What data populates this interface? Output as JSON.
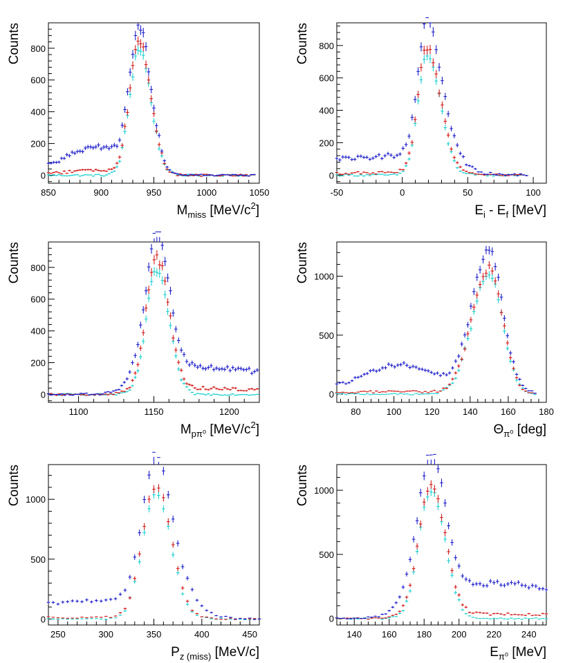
{
  "colors": {
    "series_blue": "#1b1bc9",
    "series_red": "#d21a1a",
    "series_cyan": "#1fd0d0",
    "axis": "#000000"
  },
  "legend": {
    "series_names": [
      "blue",
      "red",
      "cyan"
    ]
  },
  "chart_data": [
    {
      "type": "scatter",
      "ylabel": "Counts",
      "xlabel_text": "M",
      "xlabel_sub": "miss",
      "xlabel_unit": " [MeV/c",
      "xlabel_sup": "2",
      "xlabel_end": "]",
      "xlim": [
        850,
        1050
      ],
      "ylim": [
        -50,
        960
      ],
      "xticks": [
        850,
        900,
        950,
        1000,
        1050
      ],
      "yticks": [
        0,
        200,
        400,
        600,
        800
      ],
      "shape": {
        "peak": 936,
        "amp": 860,
        "sigma_l": 9,
        "sigma_r": 11,
        "bg_type": "left_shoulder",
        "bg_amp": 175,
        "bg_center": 895,
        "bg_sigma": 25,
        "xmin": 850,
        "xmax": 1045,
        "step": 2.5
      },
      "series": [
        {
          "name": "blue",
          "scale": 1.0,
          "bg_scale": 1.0
        },
        {
          "name": "red",
          "scale": 0.97,
          "bg_scale": 0.18
        },
        {
          "name": "cyan",
          "scale": 0.93,
          "bg_scale": 0.0
        }
      ]
    },
    {
      "type": "scatter",
      "ylabel": "Counts",
      "xlabel_text": "E",
      "xlabel_sub": "i",
      "xlabel_unit": " - E",
      "xlabel_sub2": "f",
      "xlabel_end": " [MeV]",
      "xlim": [
        -50,
        110
      ],
      "ylim": [
        -50,
        940
      ],
      "xticks": [
        -50,
        0,
        50,
        100
      ],
      "yticks": [
        0,
        200,
        400,
        600,
        800
      ],
      "shape": {
        "peak": 19,
        "amp": 820,
        "sigma_l": 7,
        "sigma_r": 10,
        "bg_type": "left_flat",
        "bg_amp": 120,
        "bg_center": -50,
        "bg_sigma": 60,
        "xmin": -50,
        "xmax": 95,
        "step": 2.3
      },
      "series": [
        {
          "name": "blue",
          "scale": 1.0,
          "bg_scale": 1.0
        },
        {
          "name": "red",
          "scale": 0.95,
          "bg_scale": 0.12
        },
        {
          "name": "cyan",
          "scale": 0.9,
          "bg_scale": 0.0
        }
      ]
    },
    {
      "type": "scatter",
      "ylabel": "Counts",
      "xlabel_text": "M",
      "xlabel_sub": "pπ⁰",
      "xlabel_unit": " [MeV/c",
      "xlabel_sup": "2",
      "xlabel_end": "]",
      "xlim": [
        1080,
        1220
      ],
      "ylim": [
        -50,
        960
      ],
      "xticks": [
        1100,
        1150,
        1200
      ],
      "yticks": [
        0,
        200,
        400,
        600,
        800
      ],
      "shape": {
        "peak": 1152,
        "amp": 870,
        "sigma_l": 7,
        "sigma_r": 8,
        "bg_type": "right_tail",
        "bg_amp": 150,
        "bg_center": 1170,
        "bg_sigma": 40,
        "xmin": 1080,
        "xmax": 1220,
        "step": 1.8
      },
      "series": [
        {
          "name": "blue",
          "scale": 1.0,
          "bg_scale": 1.0
        },
        {
          "name": "red",
          "scale": 0.95,
          "bg_scale": 0.22
        },
        {
          "name": "cyan",
          "scale": 0.9,
          "bg_scale": 0.0
        }
      ]
    },
    {
      "type": "scatter",
      "ylabel": "Counts",
      "xlabel_text": "Θ",
      "xlabel_sub": "π⁰",
      "xlabel_unit": " [deg]",
      "xlim": [
        70,
        180
      ],
      "ylim": [
        -70,
        1290
      ],
      "xticks": [
        80,
        100,
        120,
        140,
        160,
        180
      ],
      "yticks": [
        0,
        500,
        1000
      ],
      "shape": {
        "peak": 150,
        "amp": 1180,
        "sigma_l": 9,
        "sigma_r": 7,
        "bg_type": "left_bump",
        "bg_amp": 250,
        "bg_center": 103,
        "bg_sigma": 18,
        "xmin": 70,
        "xmax": 175,
        "step": 1.6
      },
      "series": [
        {
          "name": "blue",
          "scale": 1.0,
          "bg_scale": 1.0
        },
        {
          "name": "red",
          "scale": 0.9,
          "bg_scale": 0.1
        },
        {
          "name": "cyan",
          "scale": 0.86,
          "bg_scale": 0.0
        }
      ]
    },
    {
      "type": "scatter",
      "ylabel": "Counts",
      "xlabel_text": "P",
      "xlabel_sub": "z (miss)",
      "xlabel_unit": " [MeV/c]",
      "xlim": [
        240,
        460
      ],
      "ylim": [
        -50,
        1290
      ],
      "xticks": [
        250,
        300,
        350,
        400,
        450
      ],
      "yticks": [
        0,
        500,
        1000
      ],
      "shape": {
        "peak": 352,
        "amp": 1190,
        "sigma_l": 14,
        "sigma_r": 16,
        "bg_type": "left_flat",
        "bg_amp": 160,
        "bg_center": 290,
        "bg_sigma": 45,
        "xmin": 240,
        "xmax": 460,
        "step": 5
      },
      "series": [
        {
          "name": "blue",
          "scale": 1.0,
          "bg_scale": 1.0
        },
        {
          "name": "red",
          "scale": 0.92,
          "bg_scale": 0.1
        },
        {
          "name": "cyan",
          "scale": 0.88,
          "bg_scale": 0.0
        }
      ]
    },
    {
      "type": "scatter",
      "ylabel": "Counts",
      "xlabel_text": "E",
      "xlabel_sub": "π⁰",
      "xlabel_unit": " [MeV]",
      "xlim": [
        130,
        250
      ],
      "ylim": [
        -50,
        1200
      ],
      "xticks": [
        140,
        160,
        180,
        200,
        220,
        240
      ],
      "yticks": [
        0,
        500,
        1000
      ],
      "shape": {
        "peak": 184,
        "amp": 1080,
        "sigma_l": 7,
        "sigma_r": 8,
        "bg_type": "right_tail",
        "bg_amp": 240,
        "bg_center": 222,
        "bg_sigma": 25,
        "xmin": 130,
        "xmax": 250,
        "step": 2.0
      },
      "series": [
        {
          "name": "blue",
          "scale": 1.0,
          "bg_scale": 1.0
        },
        {
          "name": "red",
          "scale": 0.96,
          "bg_scale": 0.13
        },
        {
          "name": "cyan",
          "scale": 0.93,
          "bg_scale": 0.0
        }
      ]
    }
  ]
}
